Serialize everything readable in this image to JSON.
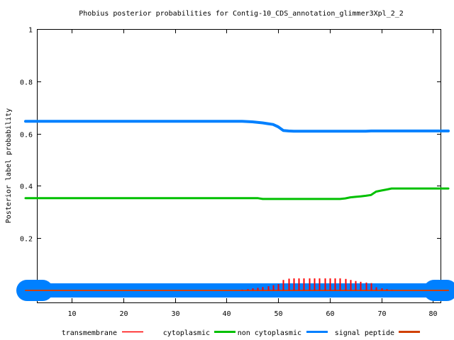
{
  "chart_data": {
    "type": "line",
    "title": "Phobius posterior probabilities for Contig-10_CDS_annotation_glimmer3Xpl_2_2",
    "xlabel": "",
    "ylabel": "Posterior label probability",
    "xlim": [
      1,
      83
    ],
    "ylim": [
      0,
      1
    ],
    "x_ticks": [
      10,
      20,
      30,
      40,
      50,
      60,
      70,
      80
    ],
    "y_ticks": [
      0.2,
      0.4,
      0.6,
      0.8,
      1
    ],
    "y_tick_labels": [
      "0.2",
      "0.4",
      "0.6",
      "0.8",
      "1"
    ],
    "grid": false,
    "legend_position": "bottom",
    "series": [
      {
        "name": "transmembrane",
        "color": "#ff0000",
        "style": "impulses",
        "x": [
          1,
          42,
          43,
          44,
          45,
          46,
          47,
          48,
          49,
          50,
          51,
          52,
          53,
          54,
          55,
          56,
          57,
          58,
          59,
          60,
          61,
          62,
          63,
          64,
          65,
          66,
          67,
          68,
          69,
          70,
          71,
          72,
          83
        ],
        "y": [
          0,
          0,
          0.003,
          0.005,
          0.008,
          0.01,
          0.013,
          0.016,
          0.02,
          0.024,
          0.04,
          0.045,
          0.046,
          0.046,
          0.046,
          0.046,
          0.046,
          0.046,
          0.046,
          0.046,
          0.046,
          0.046,
          0.044,
          0.04,
          0.036,
          0.033,
          0.03,
          0.028,
          0.012,
          0.008,
          0.005,
          0.002,
          0
        ]
      },
      {
        "name": "cytoplasmic",
        "color": "#00c000",
        "style": "line",
        "x": [
          1,
          46,
          47,
          62,
          63,
          64,
          65,
          66,
          67,
          68,
          69,
          70,
          71,
          72,
          83
        ],
        "y": [
          0.353,
          0.353,
          0.35,
          0.35,
          0.352,
          0.356,
          0.358,
          0.36,
          0.362,
          0.365,
          0.378,
          0.382,
          0.386,
          0.39,
          0.39
        ]
      },
      {
        "name": "non cytoplasmic",
        "color": "#0080ff",
        "style": "line",
        "x": [
          1,
          43,
          44,
          45,
          46,
          47,
          48,
          49,
          50,
          51,
          52,
          53,
          54,
          60,
          61,
          67,
          68,
          69,
          83
        ],
        "y": [
          0.647,
          0.647,
          0.646,
          0.645,
          0.643,
          0.641,
          0.638,
          0.635,
          0.626,
          0.612,
          0.61,
          0.609,
          0.609,
          0.609,
          0.609,
          0.609,
          0.61,
          0.61,
          0.61
        ]
      },
      {
        "name": "signal peptide",
        "color": "#d04000",
        "style": "line",
        "x": [
          1,
          83
        ],
        "y": [
          0,
          0
        ]
      }
    ]
  }
}
